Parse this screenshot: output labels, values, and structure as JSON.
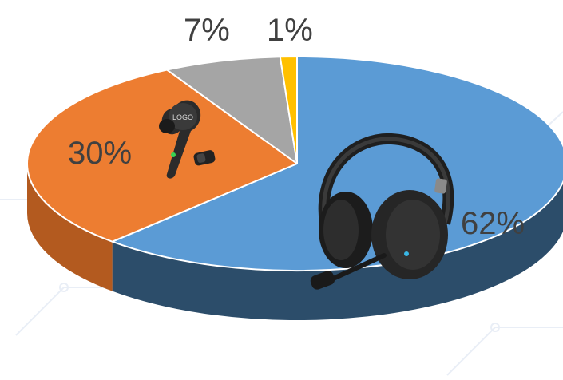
{
  "chart_data": {
    "type": "pie",
    "style": "3d",
    "values": [
      62,
      30,
      7,
      1
    ],
    "value_labels": [
      "62%",
      "30%",
      "7%",
      "1%"
    ],
    "colors": [
      "#5B9BD5",
      "#ED7D31",
      "#A5A5A5",
      "#FFC000"
    ],
    "side_colors": [
      "#2C4D6A",
      "#B35A1F",
      "#6E6E6E",
      "#B38A00"
    ],
    "icons": [
      "headset-icon",
      "earbud-icon",
      "",
      ""
    ],
    "legend": "none"
  },
  "earbud_logo": "LOGO"
}
